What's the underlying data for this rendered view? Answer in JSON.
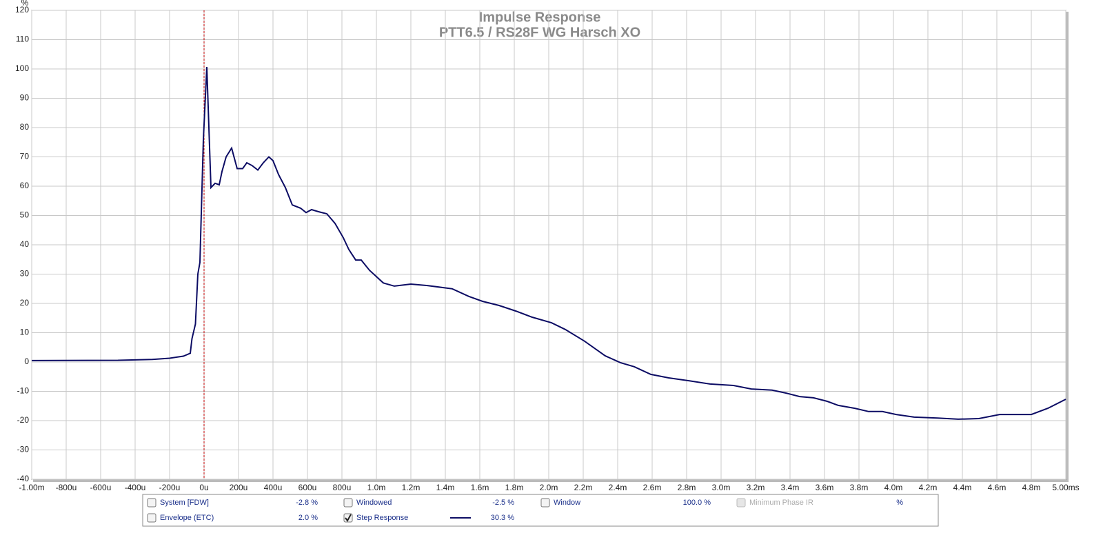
{
  "chart_data": {
    "type": "line",
    "title": "Impulse Response",
    "subtitle": "PTT6.5 / RS28F WG Harsch XO",
    "y_label": "%",
    "xlim": [
      -1.0,
      5.0
    ],
    "ylim": [
      -40,
      120
    ],
    "xticks": [
      {
        "value": -1.0,
        "label": "-1.00m"
      },
      {
        "value": -0.8,
        "label": "-800u"
      },
      {
        "value": -0.6,
        "label": "-600u"
      },
      {
        "value": -0.4,
        "label": "-400u"
      },
      {
        "value": -0.2,
        "label": "-200u"
      },
      {
        "value": 0,
        "label": "0u"
      },
      {
        "value": 0.2,
        "label": "200u"
      },
      {
        "value": 0.4,
        "label": "400u"
      },
      {
        "value": 0.6,
        "label": "600u"
      },
      {
        "value": 0.8,
        "label": "800u"
      },
      {
        "value": 1.0,
        "label": "1.0m"
      },
      {
        "value": 1.2,
        "label": "1.2m"
      },
      {
        "value": 1.4,
        "label": "1.4m"
      },
      {
        "value": 1.6,
        "label": "1.6m"
      },
      {
        "value": 1.8,
        "label": "1.8m"
      },
      {
        "value": 2.0,
        "label": "2.0m"
      },
      {
        "value": 2.2,
        "label": "2.2m"
      },
      {
        "value": 2.4,
        "label": "2.4m"
      },
      {
        "value": 2.6,
        "label": "2.6m"
      },
      {
        "value": 2.8,
        "label": "2.8m"
      },
      {
        "value": 3.0,
        "label": "3.0m"
      },
      {
        "value": 3.2,
        "label": "3.2m"
      },
      {
        "value": 3.4,
        "label": "3.4m"
      },
      {
        "value": 3.6,
        "label": "3.6m"
      },
      {
        "value": 3.8,
        "label": "3.8m"
      },
      {
        "value": 4.0,
        "label": "4.0m"
      },
      {
        "value": 4.2,
        "label": "4.2m"
      },
      {
        "value": 4.4,
        "label": "4.4m"
      },
      {
        "value": 4.6,
        "label": "4.6m"
      },
      {
        "value": 4.8,
        "label": "4.8m"
      },
      {
        "value": 5.0,
        "label": "5.00ms"
      }
    ],
    "yticks": [
      -40,
      -30,
      -20,
      -10,
      0,
      10,
      20,
      30,
      40,
      50,
      60,
      70,
      80,
      90,
      100,
      110,
      120
    ],
    "grid": true,
    "reference_line_x": 0,
    "reference_line_color": "#c00000",
    "x": [
      -1.0,
      -0.5,
      -0.3,
      -0.2,
      -0.12,
      -0.08,
      -0.07,
      -0.05,
      -0.036,
      -0.024,
      -0.004,
      0.016,
      0.04,
      0.064,
      0.088,
      0.104,
      0.128,
      0.16,
      0.192,
      0.224,
      0.248,
      0.28,
      0.312,
      0.344,
      0.376,
      0.4,
      0.432,
      0.472,
      0.512,
      0.56,
      0.592,
      0.624,
      0.664,
      0.712,
      0.76,
      0.808,
      0.84,
      0.88,
      0.912,
      0.96,
      1.04,
      1.104,
      1.2,
      1.296,
      1.44,
      1.536,
      1.616,
      1.712,
      1.808,
      1.904,
      2.016,
      2.096,
      2.208,
      2.328,
      2.416,
      2.496,
      2.592,
      2.696,
      2.816,
      2.936,
      3.072,
      3.176,
      3.296,
      3.376,
      3.456,
      3.536,
      3.616,
      3.68,
      3.776,
      3.856,
      3.936,
      4.016,
      4.12,
      4.256,
      4.376,
      4.496,
      4.616,
      4.8,
      4.896,
      5.0
    ],
    "series": [
      {
        "name": "Step Response",
        "color": "#0c0c64",
        "values": [
          0.5,
          0.6,
          0.9,
          1.3,
          2,
          3,
          8,
          13,
          30,
          34,
          76,
          100.7,
          59.5,
          61,
          60.5,
          65,
          70,
          73,
          66,
          66,
          68,
          67,
          65.5,
          68,
          70,
          68.7,
          64,
          59.5,
          53.6,
          52.5,
          51,
          52,
          51.3,
          50.6,
          47.3,
          42.4,
          38.4,
          34.8,
          34.8,
          31.3,
          27,
          25.9,
          26.6,
          26.1,
          25,
          22.4,
          20.7,
          19.3,
          17.4,
          15.3,
          13.4,
          11.1,
          7.1,
          2.1,
          -0.2,
          -1.6,
          -4.2,
          -5.4,
          -6.4,
          -7.5,
          -8,
          -9.2,
          -9.6,
          -10.6,
          -11.8,
          -12.2,
          -13.4,
          -14.8,
          -15.8,
          -16.9,
          -16.9,
          -17.9,
          -18.8,
          -19.1,
          -19.5,
          -19.3,
          -17.9,
          -17.9,
          -15.8,
          -12.7
        ]
      }
    ]
  },
  "controls": [
    {
      "label": "System [FDW]",
      "value": "-2.8 %",
      "checked": false
    },
    {
      "label": "Windowed",
      "value": "-2.5 %",
      "checked": false
    },
    {
      "label": "Window",
      "value": "100.0 %",
      "checked": false
    },
    {
      "label": "Minimum Phase IR",
      "value": "%",
      "checked": false,
      "disabled": true
    },
    {
      "label": "Envelope (ETC)",
      "value": "2.0 %",
      "checked": false
    },
    {
      "label": "Step Response",
      "value": "30.3 %",
      "checked": true,
      "series": 0
    }
  ]
}
